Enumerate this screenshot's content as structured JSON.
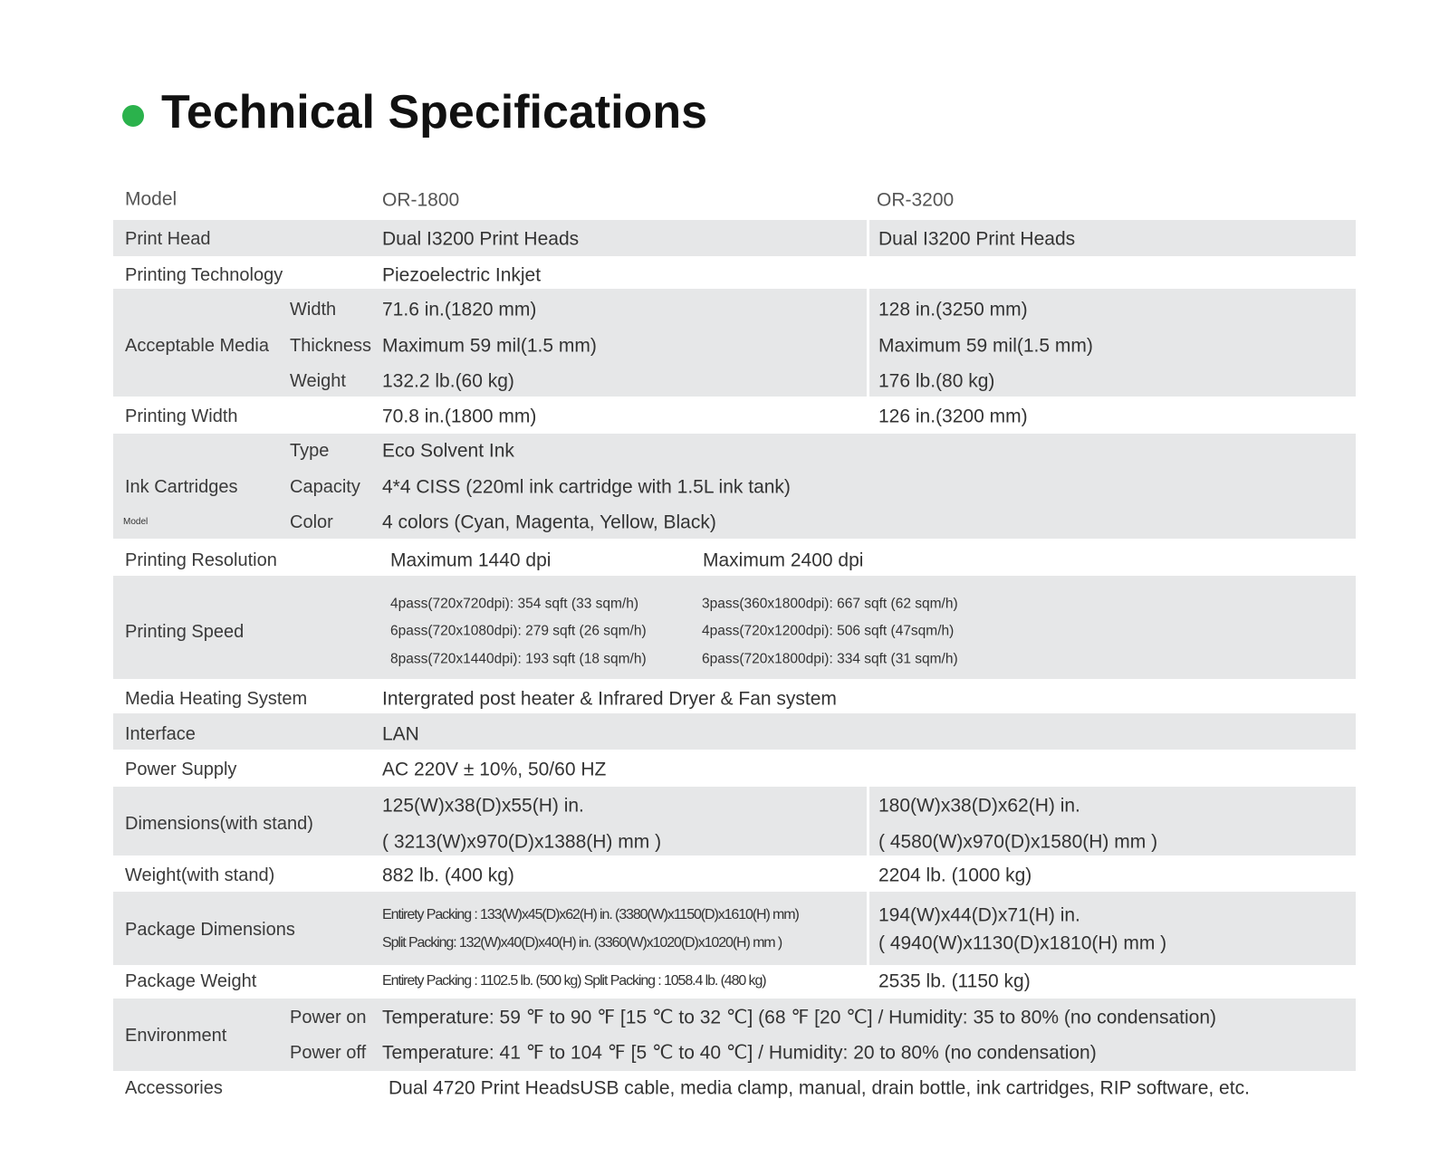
{
  "title": "Technical Specifications",
  "accent_color": "#2bb24c",
  "header": {
    "label": "Model",
    "c1": "OR-1800",
    "c2": "OR-3200"
  },
  "rows": [
    {
      "label": "Print Head",
      "c1": [
        "Dual I3200 Print Heads"
      ],
      "c2": [
        "Dual I3200 Print Heads"
      ]
    },
    {
      "label": "Printing Technology",
      "c1": [
        "Piezoelectric Inkjet"
      ],
      "c2": []
    },
    {
      "label": "Acceptable Media",
      "sub": [
        "Width",
        "Thickness",
        "Weight"
      ],
      "c1": [
        "71.6 in.(1820 mm)",
        "Maximum 59 mil(1.5 mm)",
        "132.2 lb.(60 kg)"
      ],
      "c2": [
        "128 in.(3250 mm)",
        "Maximum 59 mil(1.5 mm)",
        "176 lb.(80 kg)"
      ]
    },
    {
      "label": "Printing Width",
      "c1": [
        "70.8 in.(1800 mm)"
      ],
      "c2": [
        "126 in.(3200 mm)"
      ]
    },
    {
      "label": "Ink Cartridges",
      "note": "Model",
      "sub": [
        "Type",
        "Capacity",
        "Color"
      ],
      "c1": [
        "Eco Solvent Ink",
        "4*4 CISS (220ml ink cartridge with 1.5L ink tank)",
        "4 colors (Cyan, Magenta, Yellow, Black)"
      ],
      "c2": []
    },
    {
      "label": "Printing Resolution",
      "c1": [
        "Maximum 1440 dpi"
      ],
      "c2": [
        "Maximum 2400 dpi"
      ]
    },
    {
      "label": "Printing Speed",
      "c1": [
        "4pass(720x720dpi): 354 sqft (33 sqm/h)",
        "6pass(720x1080dpi): 279 sqft (26 sqm/h)",
        "8pass(720x1440dpi): 193 sqft (18 sqm/h)"
      ],
      "c2": [
        "3pass(360x1800dpi): 667 sqft (62 sqm/h)",
        "4pass(720x1200dpi): 506 sqft (47sqm/h)",
        "6pass(720x1800dpi): 334 sqft (31 sqm/h)"
      ]
    },
    {
      "label": "Media Heating System",
      "c1": [
        "Intergrated post heater & Infrared Dryer & Fan system"
      ],
      "c2": []
    },
    {
      "label": "Interface",
      "c1": [
        "LAN"
      ],
      "c2": []
    },
    {
      "label": "Power Supply",
      "c1": [
        "AC 220V ± 10%, 50/60 HZ"
      ],
      "c2": []
    },
    {
      "label": "Dimensions(with stand)",
      "c1": [
        "125(W)x38(D)x55(H) in.",
        "( 3213(W)x970(D)x1388(H) mm )"
      ],
      "c2": [
        "180(W)x38(D)x62(H) in.",
        "( 4580(W)x970(D)x1580(H) mm )"
      ]
    },
    {
      "label": "Weight(with stand)",
      "c1": [
        "882 lb. (400 kg)"
      ],
      "c2": [
        "2204 lb. (1000 kg)"
      ]
    },
    {
      "label": "Package Dimensions",
      "c1": [
        "Entirety Packing : 133(W)x45(D)x62(H) in. (3380(W)x1150(D)x1610(H) mm)",
        "Split Packing: 132(W)x40(D)x40(H) in. (3360(W)x1020(D)x1020(H) mm )"
      ],
      "c2": [
        "194(W)x44(D)x71(H) in.",
        "( 4940(W)x1130(D)x1810(H) mm )"
      ]
    },
    {
      "label": "Package Weight",
      "c1": [
        "Entirety Packing : 1102.5 lb. (500 kg)  Split Packing : 1058.4 lb. (480 kg)"
      ],
      "c2": [
        "2535 lb. (1150 kg)"
      ]
    },
    {
      "label": "Environment",
      "sub": [
        "Power on",
        "Power off"
      ],
      "c1": [
        "Temperature: 59 ℉  to 90 ℉  [15 ℃  to 32 ℃] (68 ℉ [20 ℃]  / Humidity: 35 to 80% (no condensation)",
        "Temperature: 41 ℉  to 104 ℉  [5 ℃  to 40 ℃] / Humidity: 20 to 80% (no condensation)"
      ],
      "c2": []
    },
    {
      "label": "Accessories",
      "c1": [
        "Dual 4720 Print HeadsUSB cable, media clamp, manual, drain bottle, ink cartridges, RIP software, etc."
      ],
      "c2": []
    }
  ]
}
